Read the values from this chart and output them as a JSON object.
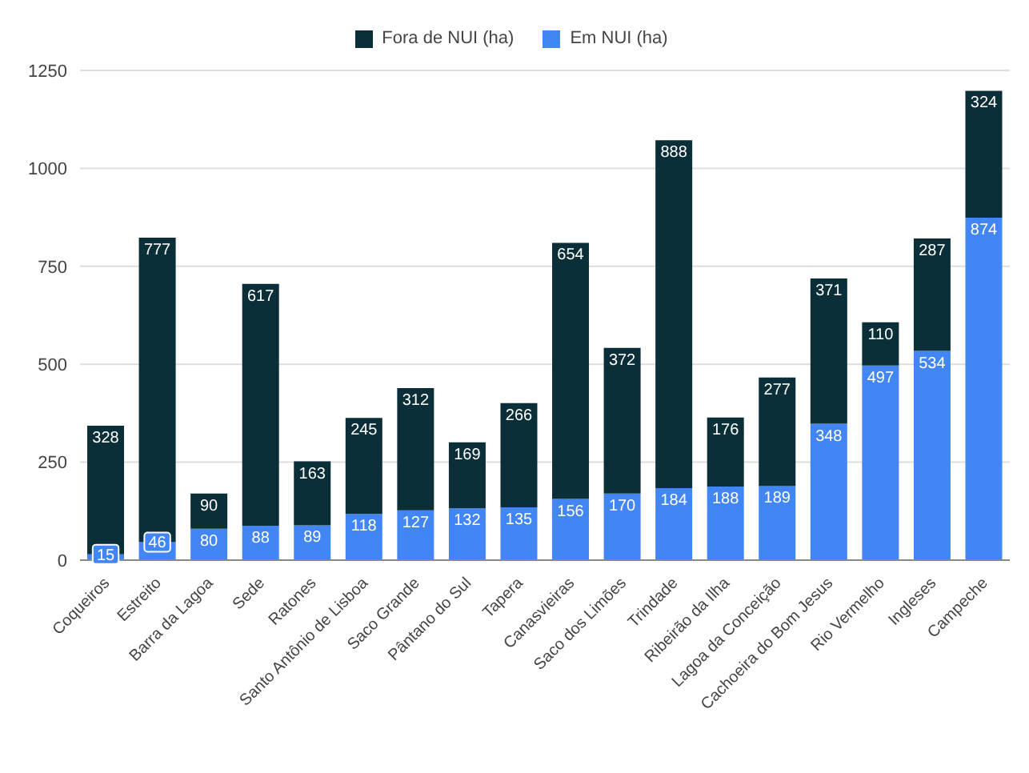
{
  "chart_data": {
    "type": "bar",
    "stacked": true,
    "categories": [
      "Coqueiros",
      "Estreito",
      "Barra da Lagoa",
      "Sede",
      "Ratones",
      "Santo Antônio de Lisboa",
      "Saco Grande",
      "Pântano do Sul",
      "Tapera",
      "Canasvieiras",
      "Saco dos Limões",
      "Trindade",
      "Ribeirão da Ilha",
      "Lagoa da Conceição",
      "Cachoeira do Bom Jesus",
      "Rio Vermelho",
      "Ingleses",
      "Campeche"
    ],
    "series": [
      {
        "name": "Em NUI (ha)",
        "color": "#4285f4",
        "values": [
          15,
          46,
          80,
          88,
          89,
          118,
          127,
          132,
          135,
          156,
          170,
          184,
          188,
          189,
          348,
          497,
          534,
          874
        ]
      },
      {
        "name": "Fora de NUI (ha)",
        "color": "#0b2f38",
        "values": [
          328,
          777,
          90,
          617,
          163,
          245,
          312,
          169,
          266,
          654,
          372,
          888,
          176,
          277,
          371,
          110,
          287,
          324
        ]
      }
    ],
    "ylim": [
      0,
      1250
    ],
    "yticks": [
      0,
      250,
      500,
      750,
      1000,
      1250
    ],
    "grid": "y",
    "legend": "top",
    "data_labels": true
  }
}
